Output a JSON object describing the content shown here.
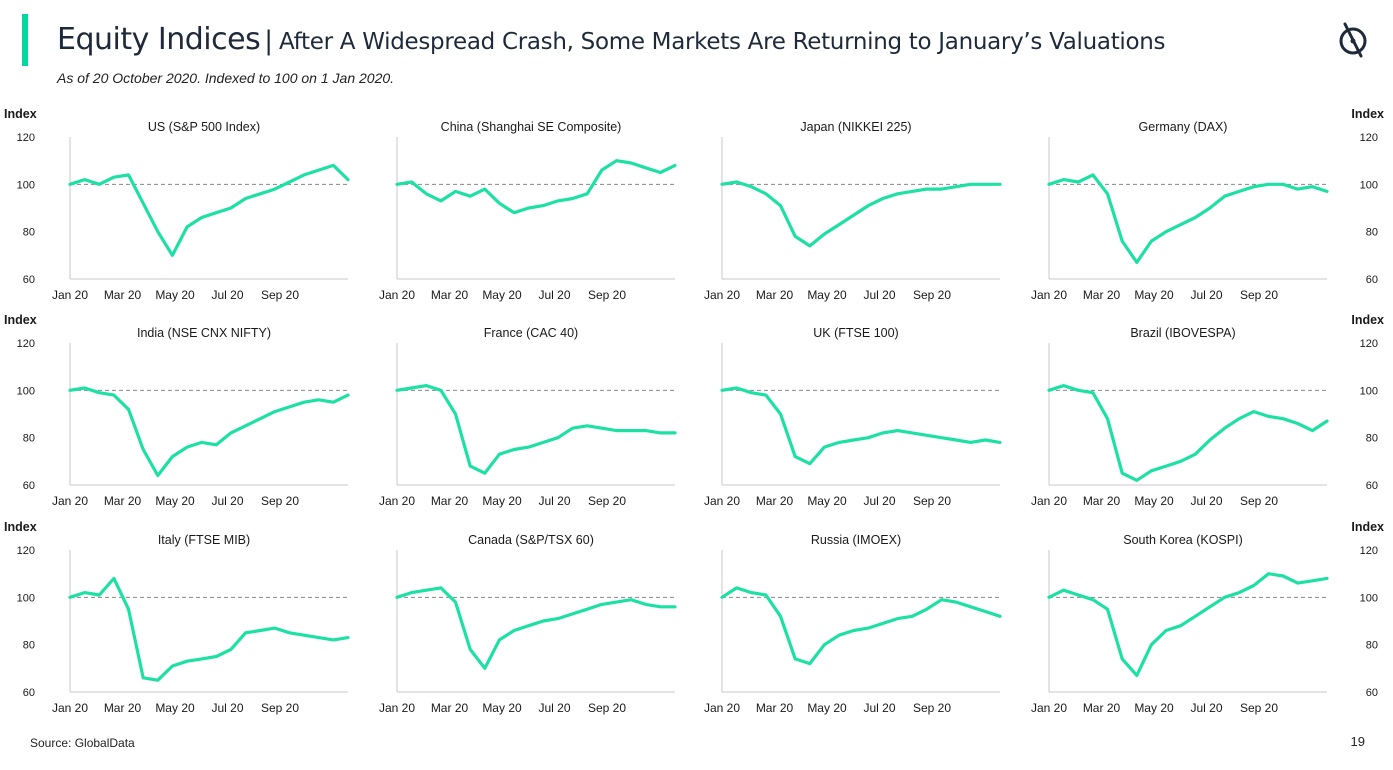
{
  "header": {
    "title": "Equity Indices",
    "separator": "|",
    "headline": "After A Widespread Crash, Some Markets Are Returning to January’s Valuations",
    "subtitle": "As of 20 October 2020. Indexed to 100 on 1 Jan 2020."
  },
  "footer": {
    "source": "Source: GlobalData",
    "page_number": "19"
  },
  "colors": {
    "accent": "#00d9a0",
    "line": "#1de0a4",
    "reference_line": "#888888",
    "axis": "#c8c8c8",
    "text": "#1a1a1a"
  },
  "logo_icon": "globaldata-logo-icon",
  "y_axis_label": "Index",
  "chart_data": [
    {
      "type": "line",
      "title": "US (S&P 500 Index)",
      "ylabel": "Index",
      "ylim": [
        60,
        120
      ],
      "yticks": [
        60,
        80,
        100,
        120
      ],
      "xticks": [
        "Jan 20",
        "Mar 20",
        "May 20",
        "Jul 20",
        "Sep 20"
      ],
      "reference_value": 100,
      "x": [
        0,
        0.5,
        1,
        1.5,
        2,
        2.5,
        3,
        3.5,
        4,
        4.5,
        5,
        5.5,
        6,
        6.5,
        7,
        7.5,
        8,
        8.5,
        9,
        9.5
      ],
      "values": [
        100,
        102,
        100,
        103,
        104,
        92,
        80,
        70,
        82,
        86,
        88,
        90,
        94,
        96,
        98,
        101,
        104,
        106,
        108,
        102
      ]
    },
    {
      "type": "line",
      "title": "China (Shanghai SE Composite)",
      "ylabel": "",
      "ylim": [
        60,
        120
      ],
      "yticks": [
        60,
        80,
        100,
        120
      ],
      "xticks": [
        "Jan 20",
        "Mar 20",
        "May 20",
        "Jul 20",
        "Sep 20"
      ],
      "reference_value": 100,
      "x": [
        0,
        0.5,
        1,
        1.5,
        2,
        2.5,
        3,
        3.5,
        4,
        4.5,
        5,
        5.5,
        6,
        6.5,
        7,
        7.5,
        8,
        8.5,
        9,
        9.5
      ],
      "values": [
        100,
        101,
        96,
        93,
        97,
        95,
        98,
        92,
        88,
        90,
        91,
        93,
        94,
        96,
        106,
        110,
        109,
        107,
        105,
        108
      ]
    },
    {
      "type": "line",
      "title": "Japan (NIKKEI 225)",
      "ylabel": "",
      "ylim": [
        60,
        120
      ],
      "yticks": [
        60,
        80,
        100,
        120
      ],
      "xticks": [
        "Jan 20",
        "Mar 20",
        "May 20",
        "Jul 20",
        "Sep 20"
      ],
      "reference_value": 100,
      "x": [
        0,
        0.5,
        1,
        1.5,
        2,
        2.5,
        3,
        3.5,
        4,
        4.5,
        5,
        5.5,
        6,
        6.5,
        7,
        7.5,
        8,
        8.5,
        9,
        9.5
      ],
      "values": [
        100,
        101,
        99,
        96,
        91,
        78,
        74,
        79,
        83,
        87,
        91,
        94,
        96,
        97,
        98,
        98,
        99,
        100,
        100,
        100
      ]
    },
    {
      "type": "line",
      "title": "Germany (DAX)",
      "ylabel": "Index",
      "ylim": [
        60,
        120
      ],
      "yticks": [
        60,
        80,
        100,
        120
      ],
      "xticks": [
        "Jan 20",
        "Mar 20",
        "May 20",
        "Jul 20",
        "Sep 20"
      ],
      "reference_value": 100,
      "x": [
        0,
        0.5,
        1,
        1.5,
        2,
        2.5,
        3,
        3.5,
        4,
        4.5,
        5,
        5.5,
        6,
        6.5,
        7,
        7.5,
        8,
        8.5,
        9,
        9.5
      ],
      "values": [
        100,
        102,
        101,
        104,
        96,
        76,
        67,
        76,
        80,
        83,
        86,
        90,
        95,
        97,
        99,
        100,
        100,
        98,
        99,
        97
      ]
    },
    {
      "type": "line",
      "title": "India (NSE CNX NIFTY)",
      "ylabel": "Index",
      "ylim": [
        60,
        120
      ],
      "yticks": [
        60,
        80,
        100,
        120
      ],
      "xticks": [
        "Jan 20",
        "Mar 20",
        "May 20",
        "Jul 20",
        "Sep 20"
      ],
      "reference_value": 100,
      "x": [
        0,
        0.5,
        1,
        1.5,
        2,
        2.5,
        3,
        3.5,
        4,
        4.5,
        5,
        5.5,
        6,
        6.5,
        7,
        7.5,
        8,
        8.5,
        9,
        9.5
      ],
      "values": [
        100,
        101,
        99,
        98,
        92,
        75,
        64,
        72,
        76,
        78,
        77,
        82,
        85,
        88,
        91,
        93,
        95,
        96,
        95,
        98
      ]
    },
    {
      "type": "line",
      "title": "France (CAC 40)",
      "ylabel": "",
      "ylim": [
        60,
        120
      ],
      "yticks": [
        60,
        80,
        100,
        120
      ],
      "xticks": [
        "Jan 20",
        "Mar 20",
        "May 20",
        "Jul 20",
        "Sep 20"
      ],
      "reference_value": 100,
      "x": [
        0,
        0.5,
        1,
        1.5,
        2,
        2.5,
        3,
        3.5,
        4,
        4.5,
        5,
        5.5,
        6,
        6.5,
        7,
        7.5,
        8,
        8.5,
        9,
        9.5
      ],
      "values": [
        100,
        101,
        102,
        100,
        90,
        68,
        65,
        73,
        75,
        76,
        78,
        80,
        84,
        85,
        84,
        83,
        83,
        83,
        82,
        82
      ]
    },
    {
      "type": "line",
      "title": "UK (FTSE 100)",
      "ylabel": "",
      "ylim": [
        60,
        120
      ],
      "yticks": [
        60,
        80,
        100,
        120
      ],
      "xticks": [
        "Jan 20",
        "Mar 20",
        "May 20",
        "Jul 20",
        "Sep 20"
      ],
      "reference_value": 100,
      "x": [
        0,
        0.5,
        1,
        1.5,
        2,
        2.5,
        3,
        3.5,
        4,
        4.5,
        5,
        5.5,
        6,
        6.5,
        7,
        7.5,
        8,
        8.5,
        9,
        9.5
      ],
      "values": [
        100,
        101,
        99,
        98,
        90,
        72,
        69,
        76,
        78,
        79,
        80,
        82,
        83,
        82,
        81,
        80,
        79,
        78,
        79,
        78
      ]
    },
    {
      "type": "line",
      "title": "Brazil (IBOVESPA)",
      "ylabel": "Index",
      "ylim": [
        60,
        120
      ],
      "yticks": [
        60,
        80,
        100,
        120
      ],
      "xticks": [
        "Jan 20",
        "Mar 20",
        "May 20",
        "Jul 20",
        "Sep 20"
      ],
      "reference_value": 100,
      "x": [
        0,
        0.5,
        1,
        1.5,
        2,
        2.5,
        3,
        3.5,
        4,
        4.5,
        5,
        5.5,
        6,
        6.5,
        7,
        7.5,
        8,
        8.5,
        9,
        9.5
      ],
      "values": [
        100,
        102,
        100,
        99,
        88,
        65,
        62,
        66,
        68,
        70,
        73,
        79,
        84,
        88,
        91,
        89,
        88,
        86,
        83,
        87
      ]
    },
    {
      "type": "line",
      "title": "Italy (FTSE MIB)",
      "ylabel": "Index",
      "ylim": [
        60,
        120
      ],
      "yticks": [
        60,
        80,
        100,
        120
      ],
      "xticks": [
        "Jan 20",
        "Mar 20",
        "May 20",
        "Jul 20",
        "Sep 20"
      ],
      "reference_value": 100,
      "x": [
        0,
        0.5,
        1,
        1.5,
        2,
        2.5,
        3,
        3.5,
        4,
        4.5,
        5,
        5.5,
        6,
        6.5,
        7,
        7.5,
        8,
        8.5,
        9,
        9.5
      ],
      "values": [
        100,
        102,
        101,
        108,
        95,
        66,
        65,
        71,
        73,
        74,
        75,
        78,
        85,
        86,
        87,
        85,
        84,
        83,
        82,
        83
      ]
    },
    {
      "type": "line",
      "title": "Canada (S&P/TSX 60)",
      "ylabel": "",
      "ylim": [
        60,
        120
      ],
      "yticks": [
        60,
        80,
        100,
        120
      ],
      "xticks": [
        "Jan 20",
        "Mar 20",
        "May 20",
        "Jul 20",
        "Sep 20"
      ],
      "reference_value": 100,
      "x": [
        0,
        0.5,
        1,
        1.5,
        2,
        2.5,
        3,
        3.5,
        4,
        4.5,
        5,
        5.5,
        6,
        6.5,
        7,
        7.5,
        8,
        8.5,
        9,
        9.5
      ],
      "values": [
        100,
        102,
        103,
        104,
        98,
        78,
        70,
        82,
        86,
        88,
        90,
        91,
        93,
        95,
        97,
        98,
        99,
        97,
        96,
        96
      ]
    },
    {
      "type": "line",
      "title": "Russia (IMOEX)",
      "ylabel": "",
      "ylim": [
        60,
        120
      ],
      "yticks": [
        60,
        80,
        100,
        120
      ],
      "xticks": [
        "Jan 20",
        "Mar 20",
        "May 20",
        "Jul 20",
        "Sep 20"
      ],
      "reference_value": 100,
      "x": [
        0,
        0.5,
        1,
        1.5,
        2,
        2.5,
        3,
        3.5,
        4,
        4.5,
        5,
        5.5,
        6,
        6.5,
        7,
        7.5,
        8,
        8.5,
        9,
        9.5
      ],
      "values": [
        100,
        104,
        102,
        101,
        92,
        74,
        72,
        80,
        84,
        86,
        87,
        89,
        91,
        92,
        95,
        99,
        98,
        96,
        94,
        92
      ]
    },
    {
      "type": "line",
      "title": "South Korea (KOSPI)",
      "ylabel": "Index",
      "ylim": [
        60,
        120
      ],
      "yticks": [
        60,
        80,
        100,
        120
      ],
      "xticks": [
        "Jan 20",
        "Mar 20",
        "May 20",
        "Jul 20",
        "Sep 20"
      ],
      "reference_value": 100,
      "x": [
        0,
        0.5,
        1,
        1.5,
        2,
        2.5,
        3,
        3.5,
        4,
        4.5,
        5,
        5.5,
        6,
        6.5,
        7,
        7.5,
        8,
        8.5,
        9,
        9.5
      ],
      "values": [
        100,
        103,
        101,
        99,
        95,
        74,
        67,
        80,
        86,
        88,
        92,
        96,
        100,
        102,
        105,
        110,
        109,
        106,
        107,
        108
      ]
    }
  ]
}
